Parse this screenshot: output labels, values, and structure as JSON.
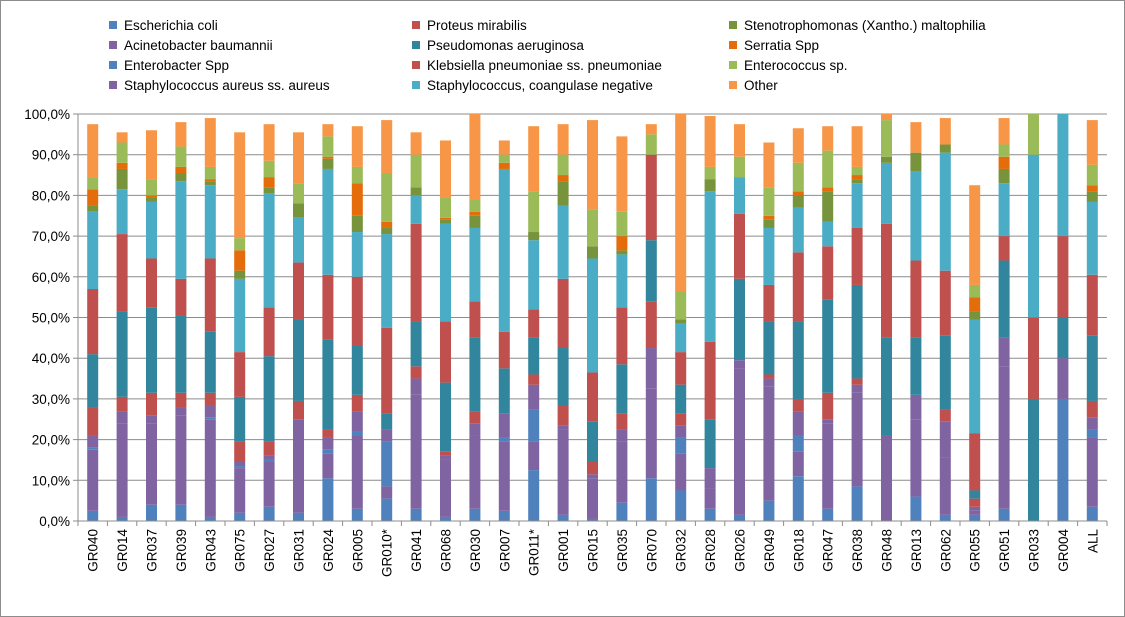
{
  "chart_data": {
    "type": "bar",
    "stacked": true,
    "title": "",
    "xlabel": "",
    "ylabel": "",
    "ylim": [
      0,
      100
    ],
    "y_ticks": [
      "0,0%",
      "10,0%",
      "20,0%",
      "30,0%",
      "40,0%",
      "50,0%",
      "60,0%",
      "70,0%",
      "80,0%",
      "90,0%",
      "100,0%"
    ],
    "grid": "horizontal",
    "legend_position": "top",
    "categories": [
      "GR040",
      "GR014",
      "GR037",
      "GR039",
      "GR043",
      "GR075",
      "GR027",
      "GR031",
      "GR024",
      "GR005",
      "GR010*",
      "GR041",
      "GR068",
      "GR030",
      "GR007",
      "GR011*",
      "GR001",
      "GR015",
      "GR035",
      "GR070",
      "GR032",
      "GR028",
      "GR026",
      "GR049",
      "GR018",
      "GR047",
      "GR038",
      "GR048",
      "GR013",
      "GR062",
      "GR055",
      "GR051",
      "GR033",
      "GR004",
      "ALL"
    ],
    "series": [
      {
        "name": "Escherichia coli",
        "color": "#4F81BD",
        "values": [
          2.5,
          1,
          4,
          4,
          1,
          2,
          3.5,
          2,
          10.5,
          3,
          5.5,
          3,
          1,
          3,
          2.5,
          12.5,
          1.5,
          0.5,
          4.5,
          10.5,
          7.5,
          3,
          1.5,
          5,
          11,
          3,
          8.5,
          0,
          6,
          1.5,
          1.5,
          3,
          0,
          30,
          3.5
        ]
      },
      {
        "name": "Acinetobacter baumannii",
        "color": "#8064A2",
        "values": [
          15,
          23,
          20,
          22,
          24,
          11,
          11,
          23,
          6,
          18,
          3,
          28,
          14,
          18,
          17,
          7,
          21,
          10,
          15,
          22,
          9,
          5,
          36,
          28,
          6,
          21,
          23,
          21,
          19,
          14,
          1,
          35,
          0,
          0,
          17
        ]
      },
      {
        "name": "Enterobacter Spp",
        "color": "#4F81BD",
        "values": [
          0.5,
          0,
          0,
          0,
          0.5,
          0.5,
          0.5,
          0,
          1,
          1,
          11,
          0,
          0,
          0,
          1,
          8,
          0,
          0,
          0,
          0,
          4,
          0,
          0,
          0,
          4,
          0,
          0,
          0,
          0,
          0,
          0,
          0,
          0,
          0,
          2
        ]
      },
      {
        "name": "Staphylococcus aureus ss. aureus",
        "color": "#8064A2",
        "values": [
          3,
          3,
          2,
          2,
          3,
          1,
          1,
          0,
          3,
          5,
          3,
          4,
          1,
          3,
          6,
          6,
          1,
          1,
          3,
          10,
          3,
          5,
          2,
          2,
          6,
          1,
          2,
          0,
          6,
          9,
          1,
          7,
          0,
          10,
          3
        ]
      },
      {
        "name": "Proteus mirabilis",
        "color": "#C0504D",
        "values": [
          7,
          3.5,
          5.5,
          3.5,
          3,
          5,
          3.5,
          4.5,
          2,
          4,
          0,
          3,
          1,
          3,
          0,
          2.5,
          5,
          3,
          4,
          11.5,
          3,
          0,
          0,
          1,
          3,
          6.5,
          1.5,
          0,
          0,
          3,
          2,
          0,
          0,
          0,
          4
        ]
      },
      {
        "name": "Pseudomonas aeruginosa",
        "color": "#31859C",
        "values": [
          13,
          21,
          21,
          19,
          15,
          11,
          21,
          20,
          22,
          12,
          4,
          11,
          17,
          18,
          11,
          9,
          14,
          10,
          12,
          15,
          7,
          12,
          20,
          13,
          19,
          23,
          23,
          24,
          14,
          18,
          2,
          19,
          30,
          10,
          16
        ]
      },
      {
        "name": "Klebsiella pneumoniae ss. pneumoniae",
        "color": "#C0504D",
        "values": [
          16,
          19,
          12,
          9,
          18,
          11,
          12,
          14,
          16,
          17,
          21,
          24,
          15,
          9,
          9,
          7,
          17,
          12,
          14,
          21,
          8,
          19,
          16,
          9,
          17,
          13,
          14,
          28,
          19,
          16,
          14,
          6,
          20,
          20,
          15
        ]
      },
      {
        "name": "Staphylococcus, coangulase negative",
        "color": "#4BACC6",
        "values": [
          19,
          11,
          14,
          24,
          18,
          18,
          28,
          11,
          26,
          11,
          23,
          7,
          24,
          18,
          40,
          17,
          18,
          28,
          13,
          0,
          7,
          37,
          9,
          14,
          11,
          6,
          11,
          15,
          22,
          29,
          28,
          13,
          40,
          30,
          18
        ]
      },
      {
        "name": "Stenotrophomonas (Xantho.) maltophilia",
        "color": "#77933C",
        "values": [
          1.5,
          5,
          1,
          2,
          1,
          2,
          1.5,
          3.5,
          2.5,
          4,
          1.5,
          2,
          1,
          3,
          0,
          2,
          6,
          3,
          1,
          0,
          1,
          3,
          0,
          2,
          3,
          7.5,
          1,
          1.5,
          4.5,
          2,
          2,
          3.5,
          0,
          0,
          2.5
        ]
      },
      {
        "name": "Serratia Spp",
        "color": "#E46C0A",
        "values": [
          4,
          1.5,
          0.5,
          1.5,
          0.5,
          5,
          2.5,
          0,
          0.5,
          8,
          1.5,
          0,
          0.5,
          1,
          1.5,
          0,
          1.5,
          0,
          3.5,
          0,
          0,
          0,
          0,
          1,
          1,
          1,
          1,
          0,
          0,
          0,
          3.5,
          3,
          0,
          0,
          1.5
        ]
      },
      {
        "name": "Enterococcus sp.",
        "color": "#9BBB59",
        "values": [
          3,
          5,
          4,
          5,
          3,
          3,
          4,
          5,
          5,
          4,
          12,
          8,
          5,
          3,
          2,
          10,
          5,
          9,
          6,
          5,
          7,
          3,
          5,
          7,
          7,
          9,
          2,
          9,
          0,
          0,
          3,
          3,
          10,
          0,
          5
        ]
      },
      {
        "name": "Other",
        "color": "#F79646",
        "values": [
          13,
          2.5,
          12,
          6,
          12,
          26,
          9,
          12.5,
          3,
          10,
          13,
          5.5,
          14,
          21,
          3.5,
          16,
          7.5,
          22,
          18.5,
          2.5,
          43.5,
          12.5,
          8,
          11,
          8.5,
          6,
          10,
          1.5,
          7.5,
          6.5,
          24.5,
          6.5,
          0,
          0,
          11
        ]
      }
    ],
    "legend": [
      {
        "name": "Escherichia coli",
        "color": "#4F81BD"
      },
      {
        "name": "Proteus mirabilis",
        "color": "#C0504D"
      },
      {
        "name": "Stenotrophomonas (Xantho.) maltophilia",
        "color": "#77933C"
      },
      {
        "name": "Acinetobacter baumannii",
        "color": "#8064A2"
      },
      {
        "name": "Pseudomonas aeruginosa",
        "color": "#31859C"
      },
      {
        "name": "Serratia Spp",
        "color": "#E46C0A"
      },
      {
        "name": "Enterobacter Spp",
        "color": "#4F81BD"
      },
      {
        "name": "Klebsiella pneumoniae ss. pneumoniae",
        "color": "#C0504D"
      },
      {
        "name": "Enterococcus sp.",
        "color": "#9BBB59"
      },
      {
        "name": "Staphylococcus aureus ss. aureus",
        "color": "#8064A2"
      },
      {
        "name": "Staphylococcus, coangulase negative",
        "color": "#4BACC6"
      },
      {
        "name": "Other",
        "color": "#F79646"
      }
    ]
  }
}
